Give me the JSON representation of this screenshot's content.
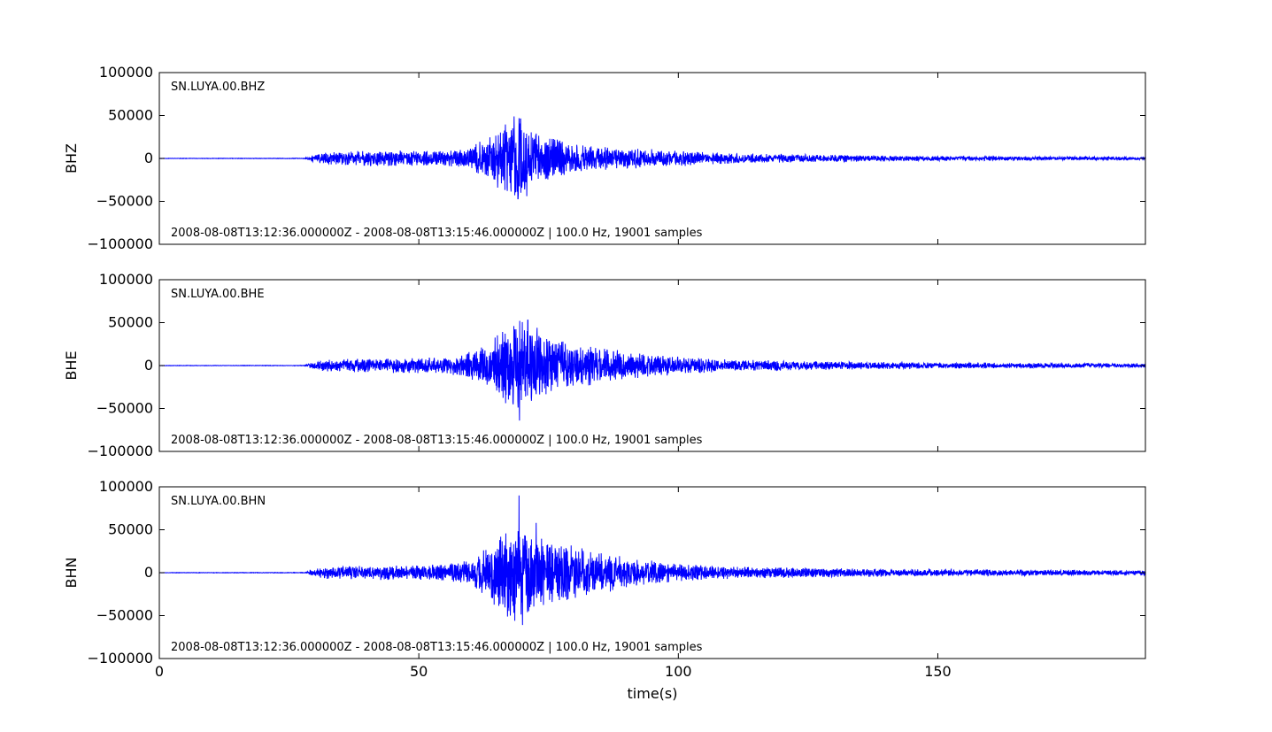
{
  "chart_data": {
    "type": "line",
    "xlabel": "time(s)",
    "xlim": [
      0,
      190
    ],
    "xticks": [
      0,
      50,
      100,
      150
    ],
    "xtick_labels": [
      "0",
      "50",
      "100",
      "150"
    ],
    "ylim": [
      -100000,
      100000
    ],
    "yticks": [
      100000,
      50000,
      0,
      -50000,
      -100000
    ],
    "ytick_labels": [
      "100000",
      "50000",
      "0",
      "−50000",
      "−100000"
    ],
    "line_color": "#0000ff",
    "grid": false,
    "panels": [
      {
        "ylabel": "BHZ",
        "trace_id": "SN.LUYA.00.BHZ",
        "info": "2008-08-08T13:12:36.000000Z - 2008-08-08T13:15:46.000000Z | 100.0 Hz, 19001 samples",
        "envelope": {
          "t": [
            0,
            28,
            29,
            32,
            40,
            55,
            60,
            62,
            65,
            68,
            69,
            70,
            72,
            75,
            80,
            90,
            100,
            110,
            130,
            150,
            170,
            190
          ],
          "amp": [
            200,
            300,
            2500,
            6000,
            8000,
            7000,
            12000,
            18000,
            28000,
            40000,
            46000,
            38000,
            25000,
            22000,
            14000,
            10000,
            8000,
            5000,
            3500,
            2500,
            2000,
            1500
          ]
        },
        "peaks": [
          [
            69.6,
            46000
          ],
          [
            69.1,
            -47000
          ],
          [
            70.8,
            -44000
          ],
          [
            72.5,
            27000
          ]
        ],
        "seed": 11
      },
      {
        "ylabel": "BHE",
        "trace_id": "SN.LUYA.00.BHE",
        "info": "2008-08-08T13:12:36.000000Z - 2008-08-08T13:15:46.000000Z | 100.0 Hz, 19001 samples",
        "envelope": {
          "t": [
            0,
            28,
            29,
            32,
            40,
            55,
            60,
            62,
            65,
            68,
            70,
            72,
            75,
            80,
            90,
            100,
            110,
            130,
            150,
            170,
            190
          ],
          "amp": [
            200,
            300,
            2500,
            6000,
            7000,
            8000,
            14000,
            20000,
            30000,
            42000,
            45000,
            35000,
            28000,
            22000,
            14000,
            9000,
            6000,
            4000,
            3000,
            2500,
            2000
          ]
        },
        "peaks": [
          [
            71.0,
            53000
          ],
          [
            69.4,
            -64000
          ],
          [
            68.3,
            46000
          ],
          [
            72.8,
            44000
          ]
        ],
        "seed": 23
      },
      {
        "ylabel": "BHN",
        "trace_id": "SN.LUYA.00.BHN",
        "info": "2008-08-08T13:12:36.000000Z - 2008-08-08T13:15:46.000000Z | 100.0 Hz, 19001 samples",
        "envelope": {
          "t": [
            0,
            28,
            29,
            32,
            40,
            55,
            60,
            62,
            65,
            68,
            70,
            72,
            75,
            80,
            90,
            100,
            110,
            130,
            150,
            170,
            190
          ],
          "amp": [
            200,
            300,
            2500,
            6000,
            7000,
            8000,
            14000,
            22000,
            34000,
            50000,
            48000,
            40000,
            32000,
            26000,
            15000,
            9000,
            6000,
            4500,
            3500,
            3000,
            2500
          ]
        },
        "peaks": [
          [
            69.3,
            90000
          ],
          [
            70.0,
            -61000
          ],
          [
            72.6,
            58000
          ],
          [
            68.5,
            -56000
          ]
        ],
        "seed": 37
      }
    ]
  }
}
